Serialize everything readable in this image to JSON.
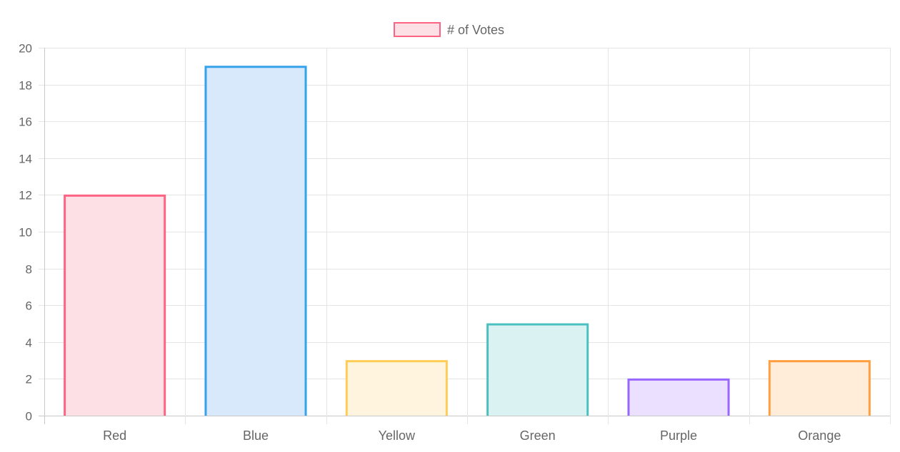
{
  "chart_data": {
    "type": "bar",
    "categories": [
      "Red",
      "Blue",
      "Yellow",
      "Green",
      "Purple",
      "Orange"
    ],
    "series": [
      {
        "name": "# of Votes",
        "values": [
          12,
          19,
          3,
          5,
          2,
          3
        ]
      }
    ],
    "ylim": [
      0,
      20
    ],
    "yticks": [
      0,
      2,
      4,
      6,
      8,
      10,
      12,
      14,
      16,
      18,
      20
    ],
    "grid": true,
    "legend_position": "top-center",
    "bar_border_colors": [
      "#ff6384",
      "#36a2eb",
      "#ffcd56",
      "#4bc0c0",
      "#9966ff",
      "#ff9f40"
    ],
    "bar_fill_colors": [
      "#fde0e6",
      "#d7e9fb",
      "#fff4dd",
      "#dbf2f2",
      "#ebe0ff",
      "#ffecd9"
    ],
    "legend_swatch": {
      "fill": "#fde0e6",
      "border": "#ff6384"
    },
    "grid_color": "#e5e5e5",
    "axis_color": "#c8c8c8",
    "text_color": "#666666"
  }
}
